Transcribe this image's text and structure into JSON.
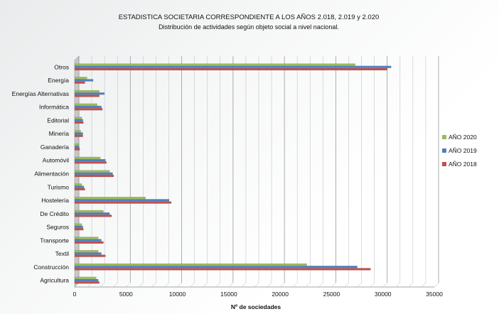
{
  "chart_data": {
    "type": "bar",
    "orientation": "horizontal",
    "title": "ESTADISTICA SOCIETARIA CORRESPONDIENTE A LOS AÑOS  2.018, 2.019 y 2.020",
    "subtitle": "Distribución de actividades según objeto social a nivel nacional.",
    "xlabel": "Nº de sociedades",
    "ylabel": "",
    "xlim": [
      0,
      35000
    ],
    "x_ticks": [
      0,
      5000,
      10000,
      15000,
      20000,
      25000,
      30000,
      35000
    ],
    "grid": true,
    "legend_position": "right",
    "categories": [
      "Otros",
      "Energía",
      "Energías Alternativas",
      "Informática",
      "Editorial",
      "Minería",
      "Ganadería",
      "Automóvil",
      "Alimentación",
      "Turismo",
      "Hostelería",
      "De Crédito",
      "Seguros",
      "Transporte",
      "Textil",
      "Construcción",
      "Agricultura"
    ],
    "series": [
      {
        "name": "AÑO 2020",
        "color": "#9bbb59",
        "values": [
          27300,
          1200,
          2400,
          2200,
          700,
          600,
          400,
          2500,
          3400,
          700,
          6900,
          2800,
          700,
          2300,
          2300,
          22600,
          2100
        ]
      },
      {
        "name": "AÑO 2019",
        "color": "#4f81bd",
        "values": [
          30800,
          1800,
          2900,
          2600,
          800,
          800,
          450,
          3000,
          3700,
          900,
          9200,
          3400,
          800,
          2600,
          2600,
          27500,
          2300
        ]
      },
      {
        "name": "AÑO 2018",
        "color": "#c0504d",
        "values": [
          30400,
          1000,
          2400,
          2700,
          850,
          800,
          500,
          3100,
          3800,
          1000,
          9400,
          3600,
          850,
          2800,
          3000,
          28800,
          2400
        ]
      }
    ]
  }
}
